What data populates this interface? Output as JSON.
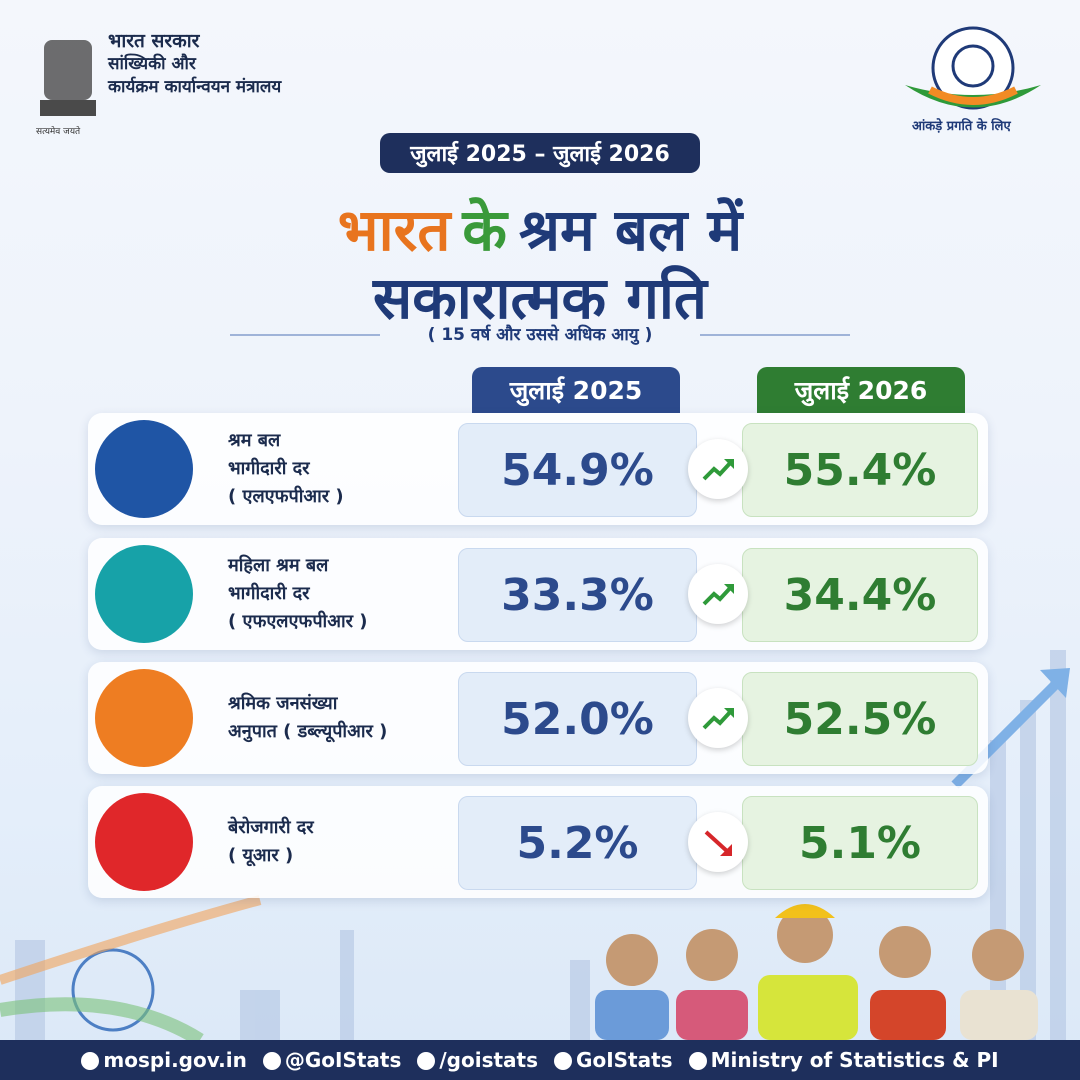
{
  "header": {
    "gov_lines": [
      "भारत सरकार",
      "सांख्यिकी और",
      "कार्यक्रम कार्यान्वयन मंत्रालय"
    ],
    "emblem_motto": "सत्यमेव जयते",
    "logo_tagline": "आंकड़े प्रगति के लिए"
  },
  "period": "जुलाई 2025 – जुलाई 2026",
  "title": {
    "line1": [
      {
        "text": "भारत",
        "color": "#e8741e"
      },
      {
        "text": "के",
        "color": "#3a9a3a"
      },
      {
        "text": "श्रम बल में",
        "color": "#1f3a78"
      }
    ],
    "line2": "सकारात्मक गति"
  },
  "subtitle": "( 15 वर्ष और उससे अधिक आयु )",
  "columns": [
    {
      "label": "जुलाई 2025",
      "color": "#2c4a8c"
    },
    {
      "label": "जुलाई 2026",
      "color": "#2f7d32"
    }
  ],
  "rows": [
    {
      "label_lines": [
        "श्रम बल",
        "भागीदारी दर",
        "( एलएफपीआर )"
      ],
      "value_2025": "54.9%",
      "value_2026": "55.4%",
      "trend": "up",
      "icon_color": "#1f55a5"
    },
    {
      "label_lines": [
        "महिला श्रम बल",
        "भागीदारी दर",
        "( एफएलएफपीआर )"
      ],
      "value_2025": "33.3%",
      "value_2026": "34.4%",
      "trend": "up",
      "icon_color": "#17a2a8"
    },
    {
      "label_lines": [
        "श्रमिक जनसंख्या",
        "अनुपात ( डब्ल्यूपीआर )"
      ],
      "value_2025": "52.0%",
      "value_2026": "52.5%",
      "trend": "up",
      "icon_color": "#ee7d22"
    },
    {
      "label_lines": [
        "बेरोजगारी दर",
        "( यूआर )"
      ],
      "value_2025": "5.2%",
      "value_2026": "5.1%",
      "trend": "down",
      "icon_color": "#e0272a"
    }
  ],
  "footer": {
    "website": "mospi.gov.in",
    "handle_x": "@GoIStats",
    "handle_instagram": "/goistats",
    "handle_linkedin": "GoIStats",
    "handle_whatsapp": "Ministry of Statistics & PI"
  }
}
